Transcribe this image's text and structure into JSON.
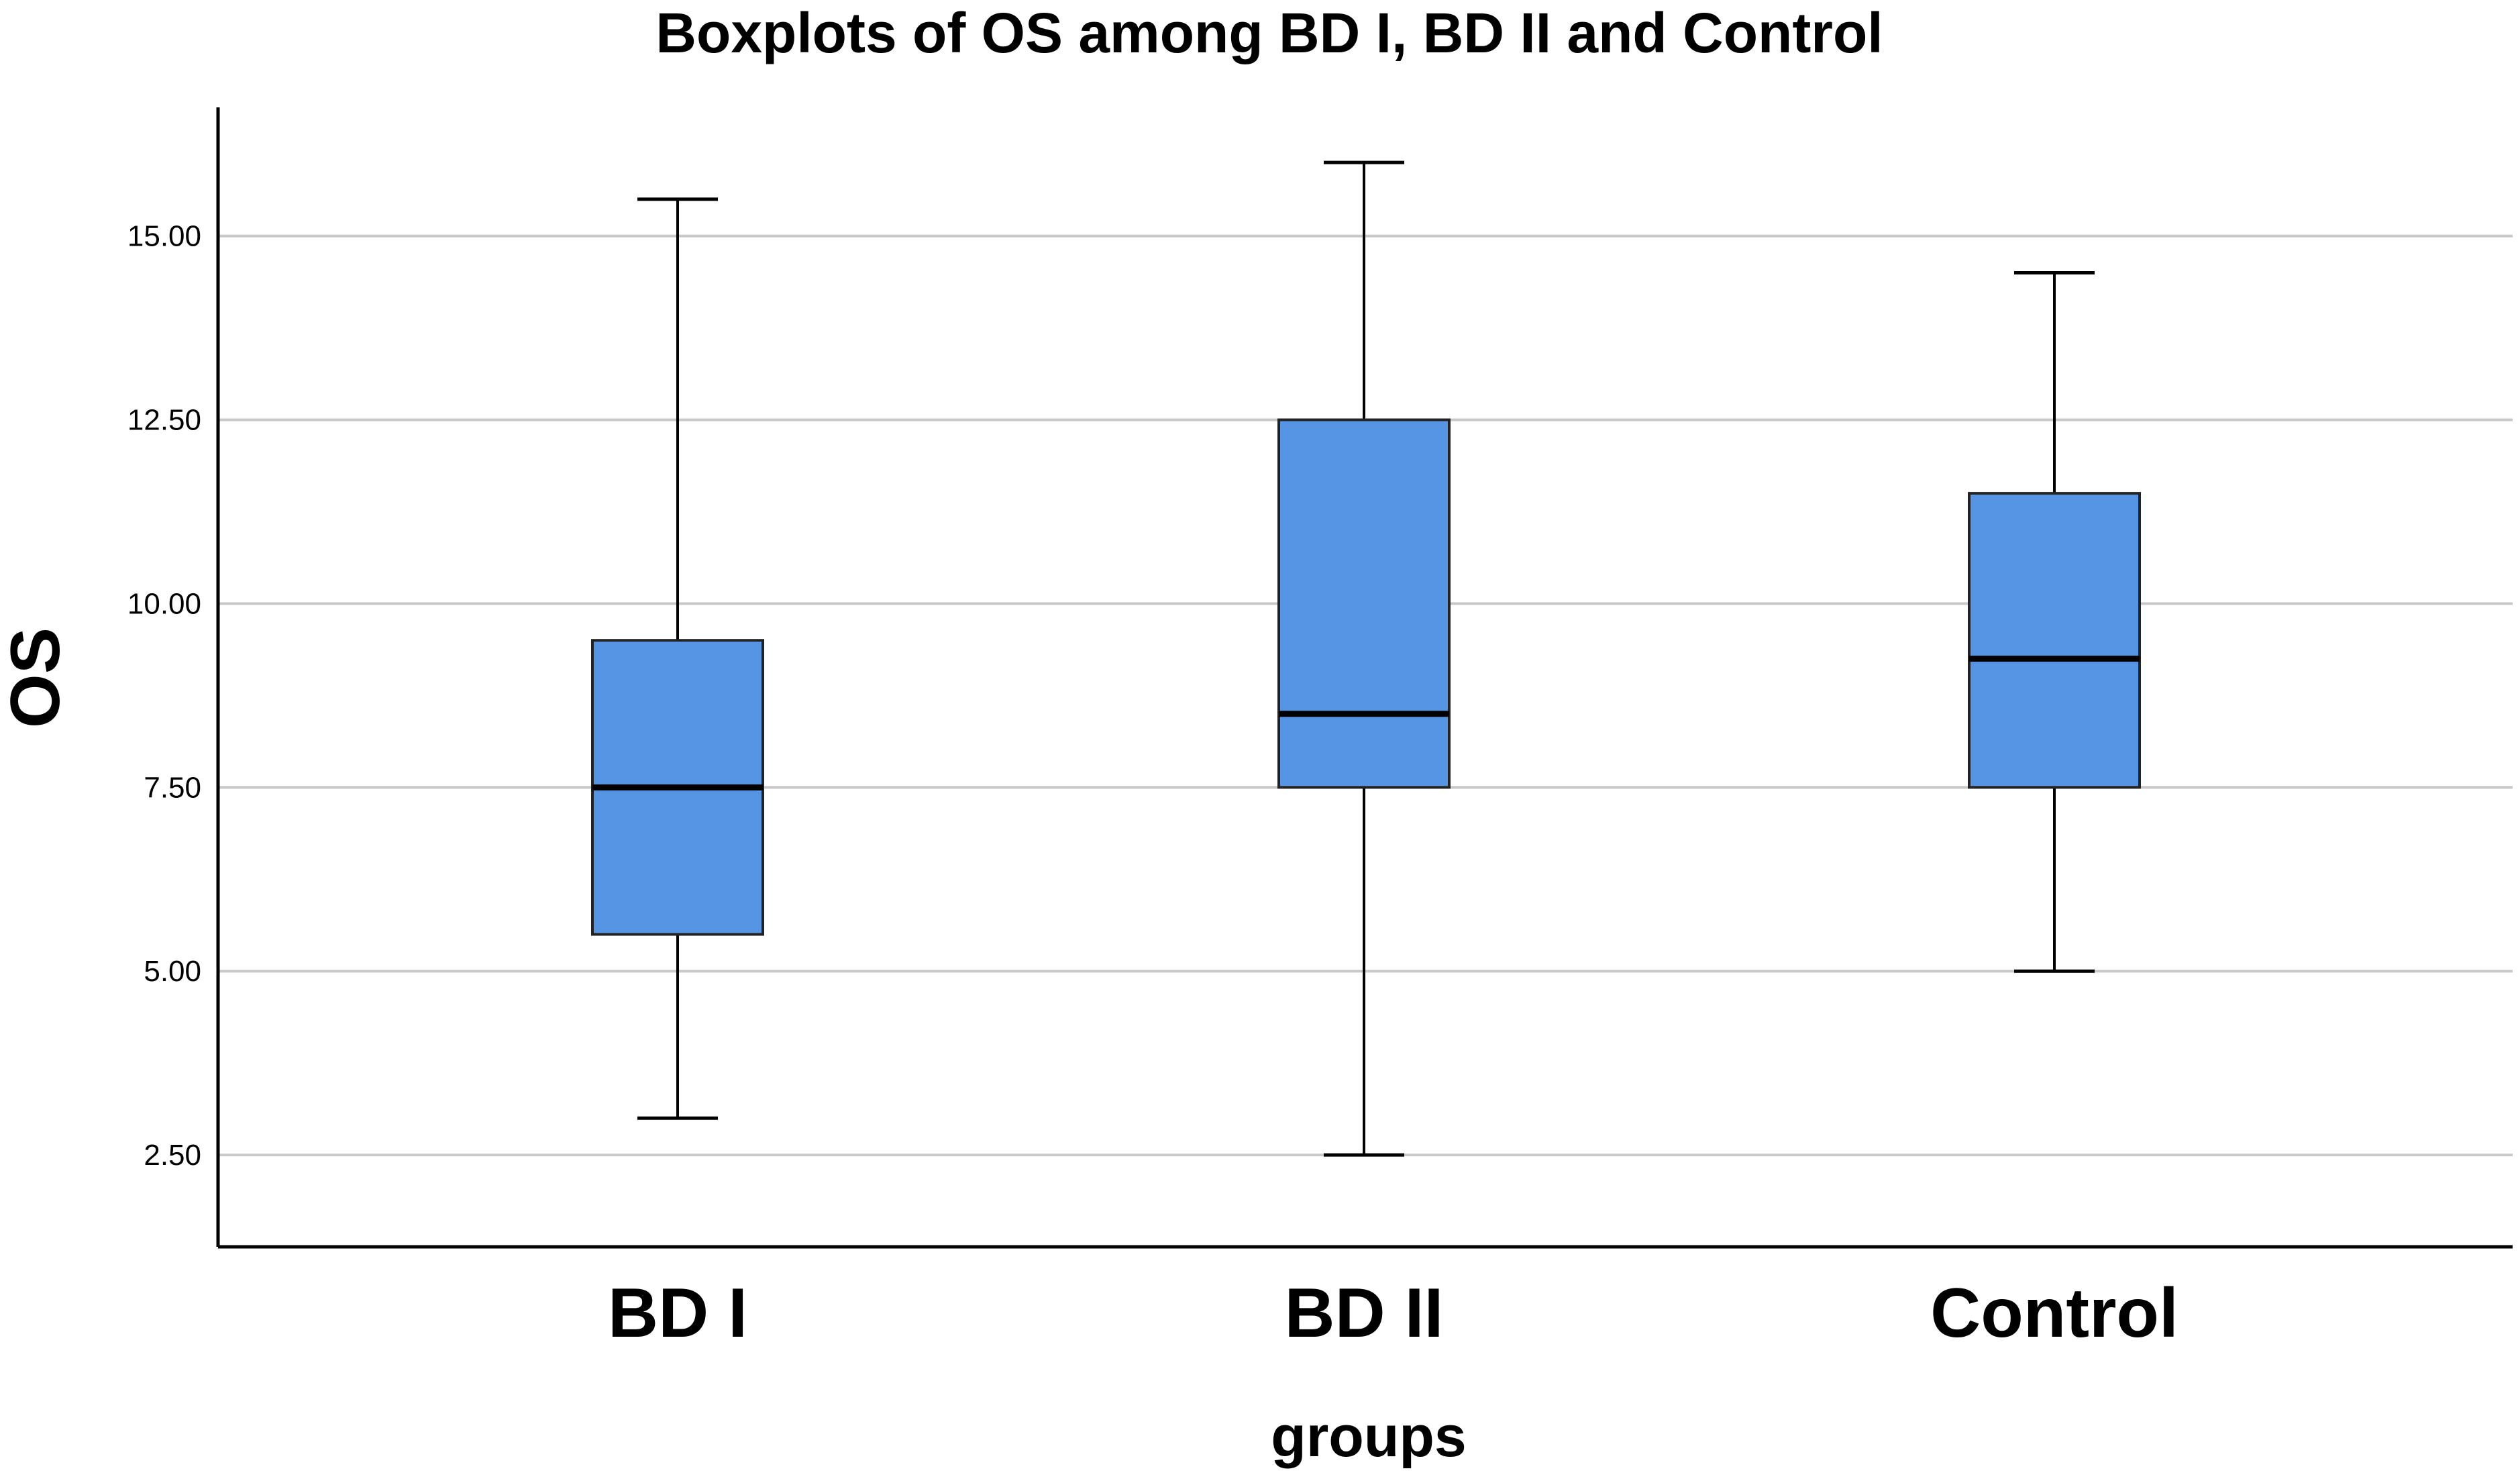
{
  "chart_data": {
    "type": "boxplot",
    "title": "Boxplots of OS among BD I, BD II and Control",
    "xlabel": "groups",
    "ylabel": "OS",
    "ylim": [
      1.25,
      16.75
    ],
    "yticks": [
      2.5,
      5.0,
      7.5,
      10.0,
      12.5,
      15.0
    ],
    "ytick_labels": [
      "2.50",
      "5.00",
      "7.50",
      "10.00",
      "12.50",
      "15.00"
    ],
    "grid": true,
    "box_color": "#5595e3",
    "grid_color": "#c8c8c8",
    "categories": [
      "BD I",
      "BD II",
      "Control"
    ],
    "boxes": [
      {
        "group": "BD I",
        "min": 3.0,
        "q1": 5.5,
        "median": 7.5,
        "q3": 9.5,
        "max": 15.5
      },
      {
        "group": "BD II",
        "min": 2.5,
        "q1": 7.5,
        "median": 8.5,
        "q3": 12.5,
        "max": 16.0
      },
      {
        "group": "Control",
        "min": 5.0,
        "q1": 7.5,
        "median": 9.25,
        "q3": 11.5,
        "max": 14.5
      }
    ]
  }
}
